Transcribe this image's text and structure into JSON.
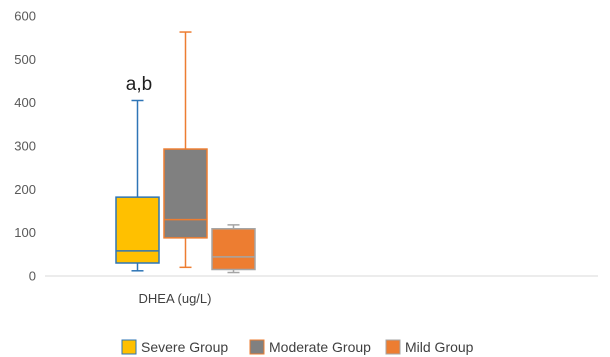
{
  "chart_data": {
    "type": "box",
    "title": "",
    "xlabel": "",
    "ylabel": "",
    "ylim": [
      0,
      600
    ],
    "yticks": [
      0,
      100,
      200,
      300,
      400,
      500,
      600
    ],
    "grid": false,
    "legend_position": "bottom",
    "categories": [
      "DHEA (ug/L)"
    ],
    "annotation": "a,b",
    "series": [
      {
        "name": "Severe Group",
        "color": "#FFC000",
        "whisker_color": "#2E75B6",
        "min": 12,
        "q1": 30,
        "median": 58,
        "q3": 182,
        "max": 405
      },
      {
        "name": "Moderate Group",
        "color": "#808080",
        "whisker_color": "#ED7D31",
        "min": 20,
        "q1": 88,
        "median": 130,
        "q3": 293,
        "max": 563
      },
      {
        "name": "Mild Group",
        "color": "#ED7D31",
        "whisker_color": "#A5A5A5",
        "min": 8,
        "q1": 15,
        "median": 44,
        "q3": 109,
        "max": 118
      }
    ]
  }
}
